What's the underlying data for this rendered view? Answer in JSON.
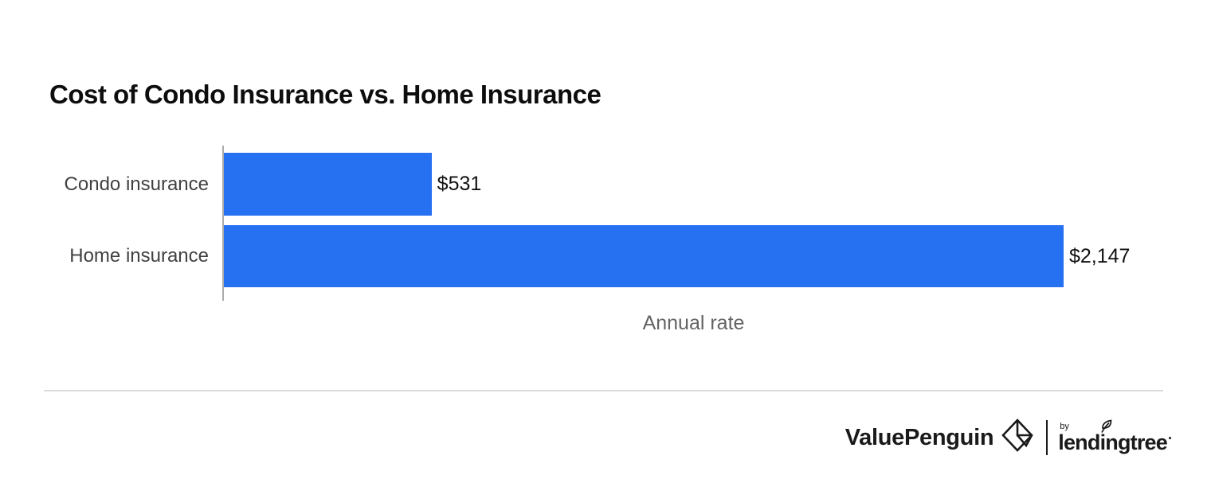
{
  "title": "Cost of Condo Insurance vs. Home Insurance",
  "chart_data": {
    "type": "bar",
    "orientation": "horizontal",
    "title": "Cost of Condo Insurance vs. Home Insurance",
    "categories": [
      "Condo insurance",
      "Home insurance"
    ],
    "values": [
      531,
      2147
    ],
    "value_labels": [
      "$531",
      "$2,147"
    ],
    "xlabel": "Annual rate",
    "ylabel": "",
    "max_value": 2147,
    "xlim": [
      0,
      2147
    ],
    "grid": false,
    "legend": false,
    "bar_color": "#2670F2",
    "axis_line_color": "#ABABAB"
  },
  "colors": {
    "background": "#FFFFFF",
    "bar": "#2670F2",
    "title_text": "#0D0D0D",
    "category_text": "#414141",
    "value_text": "#111111",
    "axis_caption_text": "#636363",
    "axis_line": "#ABABAB",
    "divider": "#DCDCDC",
    "footer_text": "#1A1A1A"
  },
  "footer": {
    "brand": "ValuePenguin",
    "brand_icon": "valuepenguin-penguin-diamond-icon",
    "attribution_prefix": "by",
    "attribution_brand": "lendingtree",
    "attribution_icon": "lendingtree-leaf-icon"
  }
}
